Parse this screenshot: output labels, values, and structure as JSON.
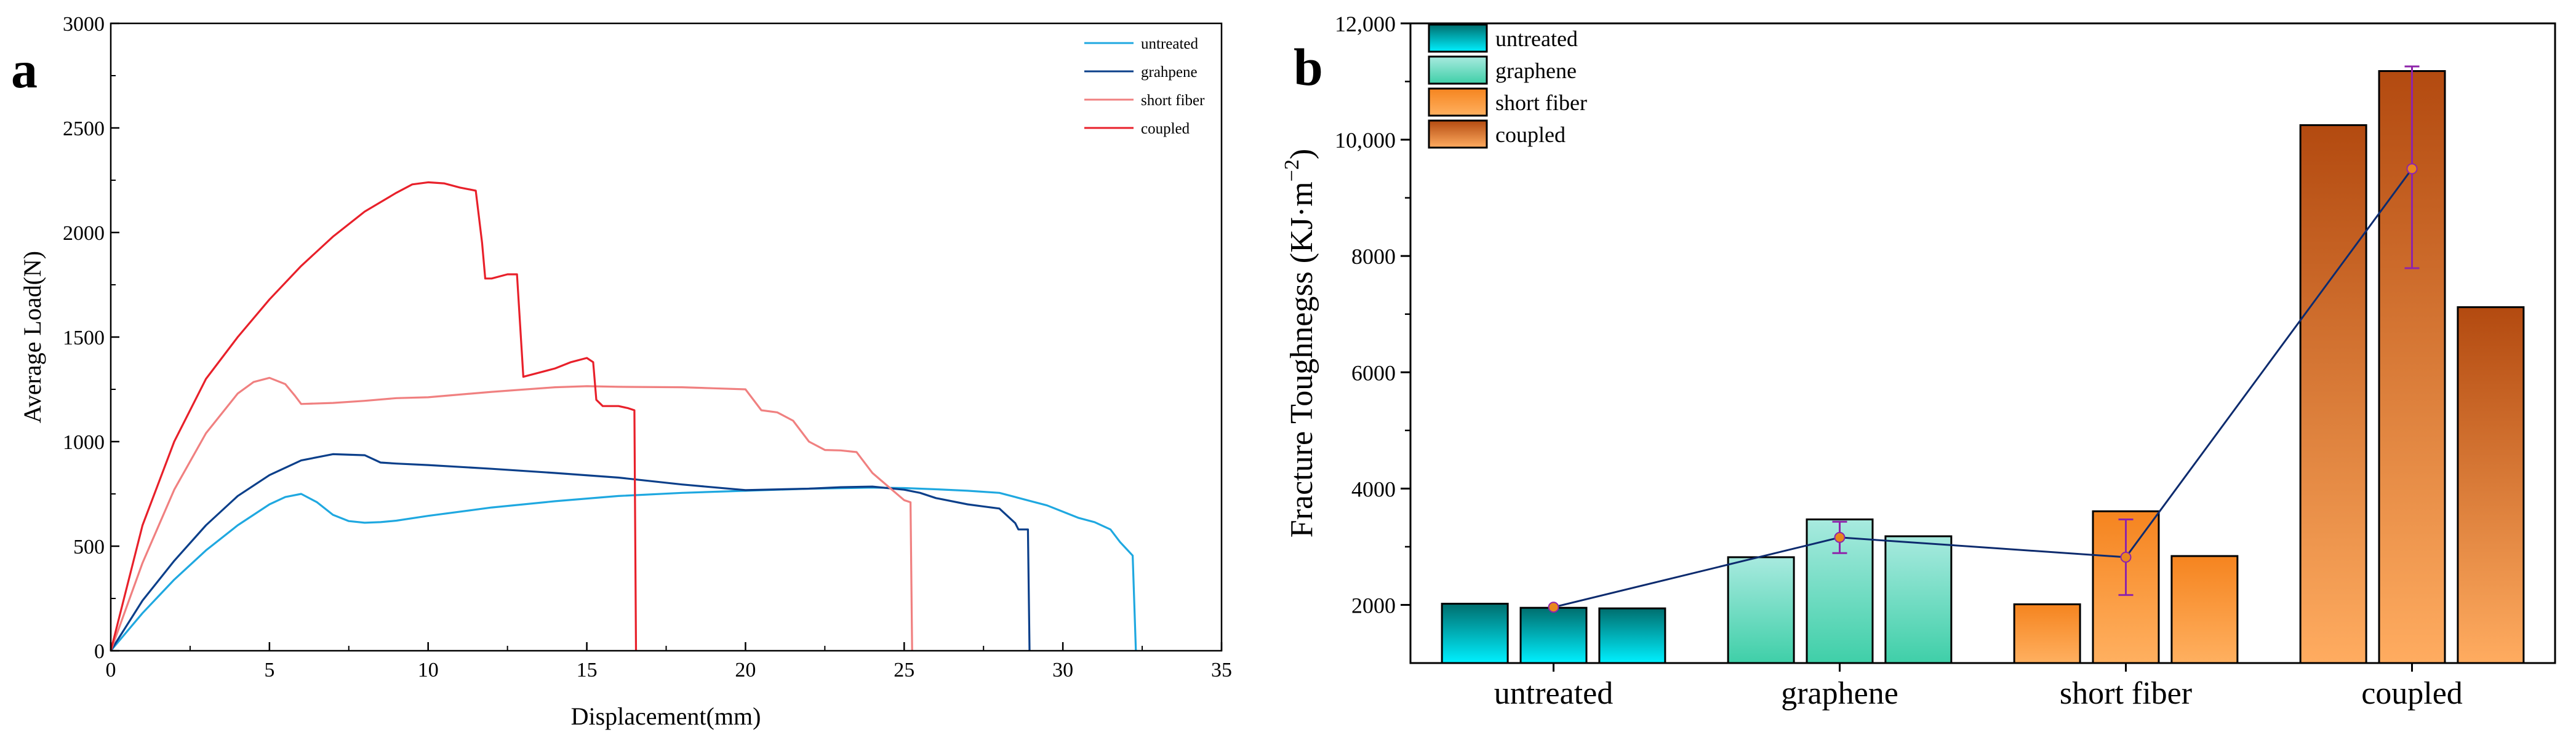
{
  "chart_data": [
    {
      "panel_label": "a",
      "type": "line",
      "title": "",
      "xlabel": "Displacement(mm)",
      "ylabel": "Average Load(N)",
      "xlim": [
        0,
        35
      ],
      "ylim": [
        0,
        3000
      ],
      "x_ticks": [
        0,
        5,
        10,
        15,
        20,
        25,
        30,
        35
      ],
      "y_ticks": [
        0,
        500,
        1000,
        1500,
        2000,
        2500,
        3000
      ],
      "legend_position": "top-right",
      "series": [
        {
          "name": "untreated",
          "color": "#1fa8e0",
          "x": [
            0,
            1,
            2,
            3,
            4,
            5,
            5.5,
            6,
            6.5,
            7,
            7.5,
            8,
            8.5,
            9,
            10,
            12,
            14,
            16,
            18,
            20,
            22,
            24,
            25,
            26,
            27,
            28,
            28.5,
            29,
            29.5,
            30,
            30.5,
            31,
            31.5,
            31.8,
            32.2,
            32.3
          ],
          "y": [
            0,
            180,
            340,
            480,
            600,
            700,
            735,
            750,
            710,
            650,
            620,
            612,
            615,
            622,
            645,
            685,
            715,
            740,
            755,
            765,
            775,
            780,
            778,
            772,
            765,
            755,
            735,
            715,
            695,
            665,
            635,
            615,
            580,
            520,
            455,
            0
          ]
        },
        {
          "name": "grahpene",
          "color": "#0b3f8a",
          "x": [
            0,
            1,
            2,
            3,
            4,
            5,
            6,
            7,
            8,
            8.5,
            9,
            10,
            12,
            14,
            16,
            18,
            20,
            22,
            23,
            24,
            25,
            25.5,
            26,
            27,
            27.5,
            28,
            28.5,
            28.6,
            28.9,
            28.95
          ],
          "y": [
            0,
            240,
            430,
            600,
            740,
            840,
            910,
            940,
            935,
            900,
            895,
            888,
            870,
            850,
            828,
            795,
            768,
            775,
            782,
            785,
            770,
            755,
            730,
            700,
            690,
            680,
            610,
            580,
            580,
            0
          ]
        },
        {
          "name": "short fiber",
          "color": "#f08080",
          "x": [
            0,
            1,
            2,
            3,
            4,
            4.5,
            5,
            5.5,
            5.8,
            6,
            7,
            8,
            9,
            10,
            12,
            14,
            15,
            16,
            18,
            19,
            20,
            20.5,
            21,
            21.5,
            22,
            22.5,
            23,
            23.5,
            24,
            24.5,
            25,
            25.2,
            25.25
          ],
          "y": [
            0,
            420,
            770,
            1040,
            1230,
            1285,
            1305,
            1275,
            1220,
            1180,
            1185,
            1195,
            1208,
            1212,
            1238,
            1260,
            1265,
            1262,
            1260,
            1255,
            1250,
            1150,
            1140,
            1100,
            1000,
            960,
            958,
            950,
            850,
            785,
            720,
            710,
            0
          ]
        },
        {
          "name": "coupled",
          "color": "#e8202a",
          "x": [
            0,
            1,
            2,
            3,
            4,
            5,
            6,
            7,
            8,
            9,
            9.5,
            10,
            10.5,
            11,
            11.5,
            11.7,
            11.8,
            12,
            12.5,
            12.8,
            13,
            13.5,
            14,
            14.5,
            15,
            15.2,
            15.3,
            15.5,
            16,
            16.3,
            16.5,
            16.55
          ],
          "y": [
            0,
            600,
            1000,
            1300,
            1500,
            1680,
            1840,
            1980,
            2100,
            2190,
            2230,
            2240,
            2235,
            2215,
            2200,
            1950,
            1780,
            1780,
            1800,
            1800,
            1310,
            1330,
            1350,
            1380,
            1400,
            1380,
            1200,
            1170,
            1170,
            1160,
            1150,
            0
          ]
        }
      ]
    },
    {
      "panel_label": "b",
      "type": "bar",
      "title": "",
      "xlabel": "",
      "ylabel_main": "Fracture Toughnegss (KJ·m",
      "ylabel_sup": "−2",
      "ylabel_close": ")",
      "ylim": [
        1000,
        12000
      ],
      "y_ticks": [
        2000,
        4000,
        6000,
        8000,
        10000,
        12000
      ],
      "y_tick_labels": [
        "2000",
        "4000",
        "6000",
        "8000",
        "10,000",
        "12,000"
      ],
      "categories": [
        "untreated",
        "graphene",
        "short fiber",
        "coupled"
      ],
      "legend_position": "top-left",
      "legend": [
        "untreated",
        "graphene",
        "short fiber",
        "coupled"
      ],
      "bar_gradients": [
        {
          "top": "#006e6e",
          "bottom": "#00f0ff"
        },
        {
          "top": "#a8eadf",
          "bottom": "#3fcfa8"
        },
        {
          "top": "#f5841f",
          "bottom": "#ffb060"
        },
        {
          "top": "#b34a10",
          "bottom": "#ffac60"
        }
      ],
      "bars": [
        {
          "category": "untreated",
          "values": [
            2020,
            1950,
            1940
          ]
        },
        {
          "category": "graphene",
          "values": [
            2820,
            3470,
            3180
          ]
        },
        {
          "category": "short fiber",
          "values": [
            2010,
            3610,
            2840
          ]
        },
        {
          "category": "coupled",
          "values": [
            10250,
            11180,
            7120
          ]
        }
      ],
      "mean_line": {
        "color": "#0d2b6e",
        "point_color": "#e8871e",
        "error_color": "#8e24aa",
        "means": [
          1960,
          3160,
          2820,
          9500
        ],
        "error_low": [
          1960,
          2890,
          2170,
          7790
        ],
        "error_high": [
          1960,
          3430,
          3470,
          11260
        ]
      }
    }
  ]
}
